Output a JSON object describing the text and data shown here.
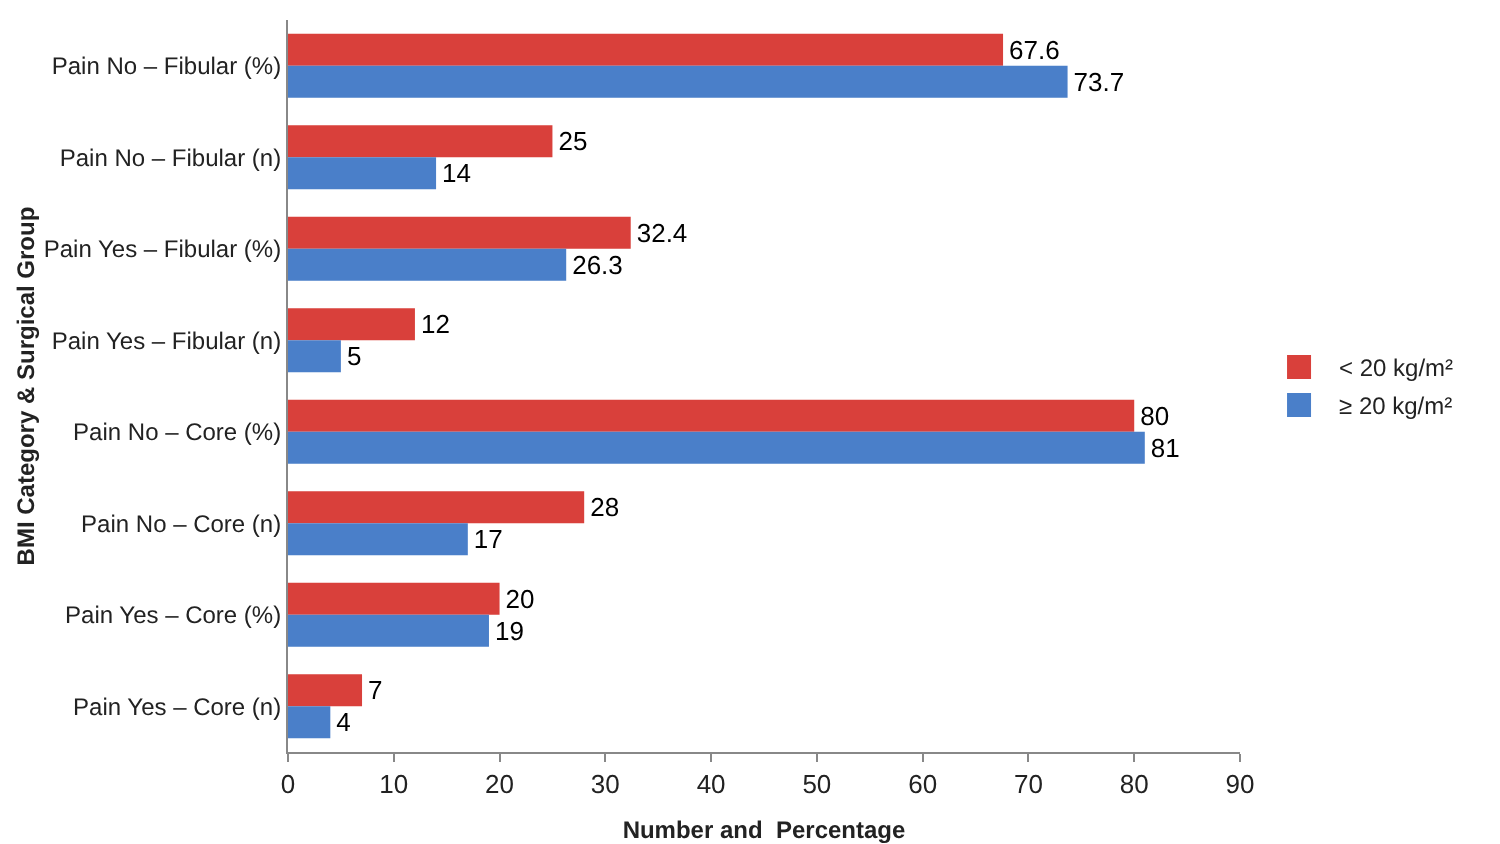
{
  "chart_data": {
    "type": "bar",
    "orientation": "horizontal",
    "xlabel": "Number and  Percentage",
    "ylabel": "BMI Category & Surgical Group",
    "categories": [
      "Pain No – Fibular (%)",
      "Pain No – Fibular (n)",
      "Pain Yes – Fibular (%)",
      "Pain Yes – Fibular (n)",
      "Pain No – Core (%)",
      "Pain No – Core (n)",
      "Pain Yes – Core (%)",
      "Pain Yes – Core (n)"
    ],
    "series": [
      {
        "name": "< 20 kg/m²",
        "color": "#d9403b",
        "values": [
          67.6,
          25,
          32.4,
          12,
          80,
          28,
          20,
          7
        ]
      },
      {
        "name": "≥ 20 kg/m²",
        "color": "#4a7fc9",
        "values": [
          73.7,
          14,
          26.3,
          5,
          81,
          17,
          19,
          4
        ]
      }
    ],
    "xlim": [
      0,
      90
    ],
    "xticks": [
      0,
      10,
      20,
      30,
      40,
      50,
      60,
      70,
      80,
      90
    ],
    "grid": false,
    "legend": "right",
    "data_labels": true
  }
}
